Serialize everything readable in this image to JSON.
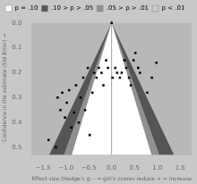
{
  "chart_data": {
    "type": "scatter",
    "xlabel": "Effect size (Hedge's g: - = girl's scores reduce + = increase",
    "ylabel": "Confidence in the estimate (Std Error) →",
    "xlim": [
      -1.75,
      1.75
    ],
    "ylim": [
      0.53,
      -0.01
    ],
    "xticks": [
      {
        "value": -1.5,
        "label": "−1.5"
      },
      {
        "value": -1.0,
        "label": "−1.0"
      },
      {
        "value": -0.5,
        "label": "−0.5"
      },
      {
        "value": 0.0,
        "label": "0.0"
      },
      0.5,
      {
        "value": 1.0,
        "label": "1.0"
      },
      1.5
    ],
    "yticks": [
      {
        "value": 0.0,
        "label": "0.0"
      },
      0.1,
      0.2,
      0.3,
      0.4,
      0.5
    ],
    "grid": false,
    "legend": "upper left",
    "background": "#c8c8c8",
    "regions": [
      {
        "color": "#b8b8b8",
        "polygon": [
          [
            -1.75,
            0.0
          ],
          [
            1.75,
            0.0
          ],
          [
            1.75,
            0.53
          ],
          [
            -1.75,
            0.53
          ]
        ]
      },
      {
        "color": "#555555",
        "polygon": [
          [
            0.0,
            0.0
          ],
          [
            -1.0388,
            0.53
          ],
          [
            -1.36528,
            0.53
          ]
        ]
      },
      {
        "color": "#555555",
        "polygon": [
          [
            0.0,
            0.0
          ],
          [
            1.0388,
            0.53
          ],
          [
            1.36528,
            0.53
          ]
        ]
      },
      {
        "color": "#909090",
        "polygon": [
          [
            0.0,
            0.0
          ],
          [
            -0.87185,
            0.53
          ],
          [
            -1.0388,
            0.53
          ]
        ]
      },
      {
        "color": "#909090",
        "polygon": [
          [
            0.0,
            0.0
          ],
          [
            0.87185,
            0.53
          ],
          [
            1.0388,
            0.53
          ]
        ]
      },
      {
        "color": "#ffffff",
        "polygon": [
          [
            0.0,
            0.0
          ],
          [
            -0.87185,
            0.53
          ],
          [
            0.87185,
            0.53
          ]
        ]
      }
    ],
    "reference_lines": [
      {
        "x": 0.0,
        "color": "#888888"
      }
    ],
    "legend_entries": [
      {
        "name": "p = .10",
        "color": "#ffffff"
      },
      {
        "name": ".10 > p > .05",
        "color": "#555555"
      },
      {
        "name": ".05 > p > .01",
        "color": "#909090"
      },
      {
        "name": "p < .01",
        "color": "#c8c8c8"
      }
    ],
    "series": [
      {
        "color": "#000000",
        "marker": "square",
        "values": [
          [
            -1.38,
            0.47
          ],
          [
            -1.22,
            0.5
          ],
          [
            -1.18,
            0.3
          ],
          [
            -1.12,
            0.35
          ],
          [
            -1.08,
            0.28
          ],
          [
            -1.02,
            0.38
          ],
          [
            -0.98,
            0.32
          ],
          [
            -0.93,
            0.27
          ],
          [
            -0.88,
            0.42
          ],
          [
            -0.82,
            0.36
          ],
          [
            -0.78,
            0.25
          ],
          [
            -0.72,
            0.4
          ],
          [
            -0.68,
            0.3
          ],
          [
            -0.62,
            0.22
          ],
          [
            -0.58,
            0.35
          ],
          [
            -0.52,
            0.18
          ],
          [
            -0.48,
            0.45
          ],
          [
            -0.42,
            0.28
          ],
          [
            -0.38,
            0.2
          ],
          [
            -0.33,
            0.22
          ],
          [
            -0.28,
            0.18
          ],
          [
            -0.22,
            0.2
          ],
          [
            -0.18,
            0.25
          ],
          [
            -0.12,
            0.15
          ],
          [
            -0.08,
            0.18
          ],
          [
            0.02,
            0.22
          ],
          [
            0.08,
            0.18
          ],
          [
            0.12,
            0.2
          ],
          [
            0.18,
            0.22
          ],
          [
            0.22,
            0.2
          ],
          [
            0.28,
            0.15
          ],
          [
            0.32,
            0.18
          ],
          [
            0.38,
            0.22
          ],
          [
            0.42,
            0.25
          ],
          [
            0.48,
            0.15
          ],
          [
            0.52,
            0.12
          ],
          [
            0.58,
            0.18
          ],
          [
            0.62,
            0.2
          ],
          [
            0.78,
            0.28
          ],
          [
            0.88,
            0.22
          ],
          [
            0.98,
            0.16
          ],
          [
            0.0,
            0.0
          ]
        ]
      }
    ]
  }
}
